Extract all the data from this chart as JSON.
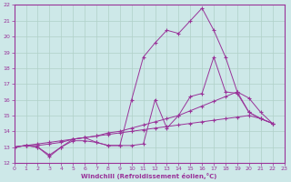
{
  "background_color": "#cde8e8",
  "line_color": "#993399",
  "grid_color": "#b0d0c8",
  "xlabel": "Windchill (Refroidissement éolien,°C)",
  "xlim": [
    0,
    23
  ],
  "ylim": [
    12,
    22
  ],
  "yticks": [
    12,
    13,
    14,
    15,
    16,
    17,
    18,
    19,
    20,
    21,
    22
  ],
  "xticks": [
    0,
    1,
    2,
    3,
    4,
    5,
    6,
    7,
    8,
    9,
    10,
    11,
    12,
    13,
    14,
    15,
    16,
    17,
    18,
    19,
    20,
    21,
    22,
    23
  ],
  "series": [
    {
      "x": [
        0,
        1,
        2,
        3,
        4,
        5,
        6,
        7,
        8,
        9,
        10,
        11,
        12,
        13,
        14,
        15,
        16,
        17,
        18,
        19,
        20,
        21,
        22
      ],
      "y": [
        13.0,
        13.1,
        13.0,
        12.5,
        13.0,
        13.4,
        13.4,
        13.3,
        13.1,
        13.1,
        13.1,
        13.2,
        16.0,
        14.2,
        15.0,
        16.2,
        16.4,
        18.7,
        16.5,
        16.4,
        15.2,
        14.8,
        14.5
      ]
    },
    {
      "x": [
        0,
        1,
        2,
        3,
        4,
        5,
        6,
        7,
        8,
        9,
        10,
        11,
        12,
        13,
        14,
        15,
        16,
        17,
        18,
        19,
        20,
        21,
        22
      ],
      "y": [
        13.0,
        13.1,
        13.0,
        12.4,
        13.0,
        13.5,
        13.6,
        13.3,
        13.1,
        13.1,
        16.0,
        18.7,
        19.6,
        20.4,
        20.2,
        21.0,
        21.8,
        20.4,
        18.7,
        16.5,
        15.2,
        14.8,
        14.5
      ]
    },
    {
      "x": [
        0,
        1,
        2,
        3,
        4,
        5,
        6,
        7,
        8,
        9,
        10,
        11,
        12,
        13,
        14,
        15,
        16,
        17,
        18,
        19,
        20,
        21,
        22
      ],
      "y": [
        13.0,
        13.1,
        13.1,
        13.2,
        13.3,
        13.5,
        13.6,
        13.7,
        13.9,
        14.0,
        14.2,
        14.4,
        14.6,
        14.8,
        15.0,
        15.3,
        15.6,
        15.9,
        16.2,
        16.5,
        16.1,
        15.2,
        14.5
      ]
    },
    {
      "x": [
        0,
        1,
        2,
        3,
        4,
        5,
        6,
        7,
        8,
        9,
        10,
        11,
        12,
        13,
        14,
        15,
        16,
        17,
        18,
        19,
        20,
        21,
        22
      ],
      "y": [
        13.0,
        13.1,
        13.2,
        13.3,
        13.4,
        13.5,
        13.6,
        13.7,
        13.8,
        13.9,
        14.0,
        14.1,
        14.2,
        14.3,
        14.4,
        14.5,
        14.6,
        14.7,
        14.8,
        14.9,
        15.0,
        14.8,
        14.5
      ]
    }
  ]
}
